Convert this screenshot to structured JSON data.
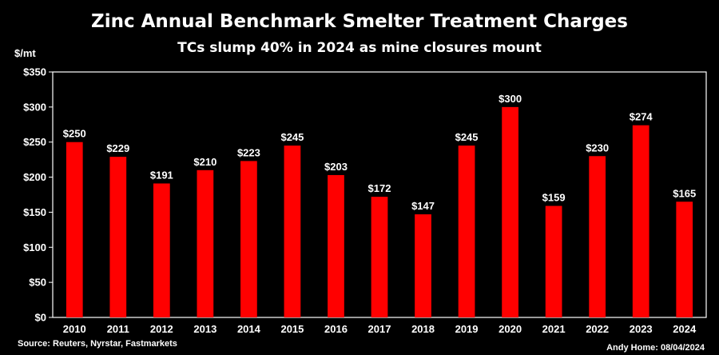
{
  "chart_data": {
    "type": "bar",
    "title": "Zinc Annual Benchmark Smelter Treatment Charges",
    "subtitle": "TCs slump 40% in 2024 as mine closures mount",
    "ylabel": "$/mt",
    "xlabel": "",
    "ylim": [
      0,
      350
    ],
    "yticks": [
      0,
      50,
      100,
      150,
      200,
      250,
      300,
      350
    ],
    "ytick_labels": [
      "$0",
      "$50",
      "$100",
      "$150",
      "$200",
      "$250",
      "$300",
      "$350"
    ],
    "categories": [
      "2010",
      "2011",
      "2012",
      "2013",
      "2014",
      "2015",
      "2016",
      "2017",
      "2018",
      "2019",
      "2020",
      "2021",
      "2022",
      "2023",
      "2024"
    ],
    "values": [
      250,
      229,
      191,
      210,
      223,
      245,
      203,
      172,
      147,
      245,
      300,
      159,
      230,
      274,
      165
    ],
    "data_labels": [
      "$250",
      "$229",
      "$191",
      "$210",
      "$223",
      "$245",
      "$203",
      "$172",
      "$147",
      "$245",
      "$300",
      "$159",
      "$230",
      "$274",
      "$165"
    ],
    "bar_color": "#ff0000",
    "background": "#000000",
    "grid": false,
    "legend": false
  },
  "footer": {
    "source": "Source: Reuters, Nyrstar, Fastmarkets",
    "credit": "Andy Home: 08/04/2024"
  }
}
